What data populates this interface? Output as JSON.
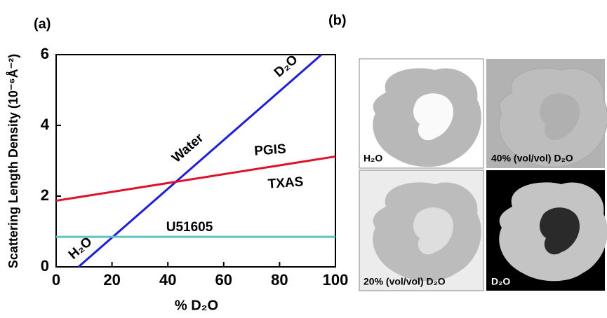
{
  "chart_data": {
    "type": "line",
    "panel_label": "(a)",
    "xlabel": "% D₂O",
    "ylabel": "Scattering Length Density (10⁻⁶Å⁻²)",
    "xlim": [
      0,
      100
    ],
    "xticks": [
      0,
      20,
      40,
      60,
      80,
      100
    ],
    "ylim": [
      0,
      6
    ],
    "yticks": [
      0,
      2,
      4,
      6
    ],
    "series": [
      {
        "color": "#1f1fd6",
        "x": [
          8,
          95
        ],
        "values": [
          0,
          6
        ],
        "labels": [
          "H₂O",
          "Water",
          "D₂O"
        ]
      },
      {
        "color": "#e0102a",
        "x": [
          0,
          100
        ],
        "values": [
          1.87,
          3.12
        ],
        "labels": [
          "PGIS",
          "TXAS"
        ]
      },
      {
        "color": "#5bc4c8",
        "x": [
          0,
          100
        ],
        "values": [
          0.85,
          0.85
        ],
        "labels": [
          "U51605"
        ]
      }
    ]
  },
  "panel_b": {
    "panel_label": "(b)",
    "images": [
      "H₂O",
      "40% (vol/vol) D₂O",
      "20% (vol/vol) D₂O",
      "D₂O"
    ]
  }
}
